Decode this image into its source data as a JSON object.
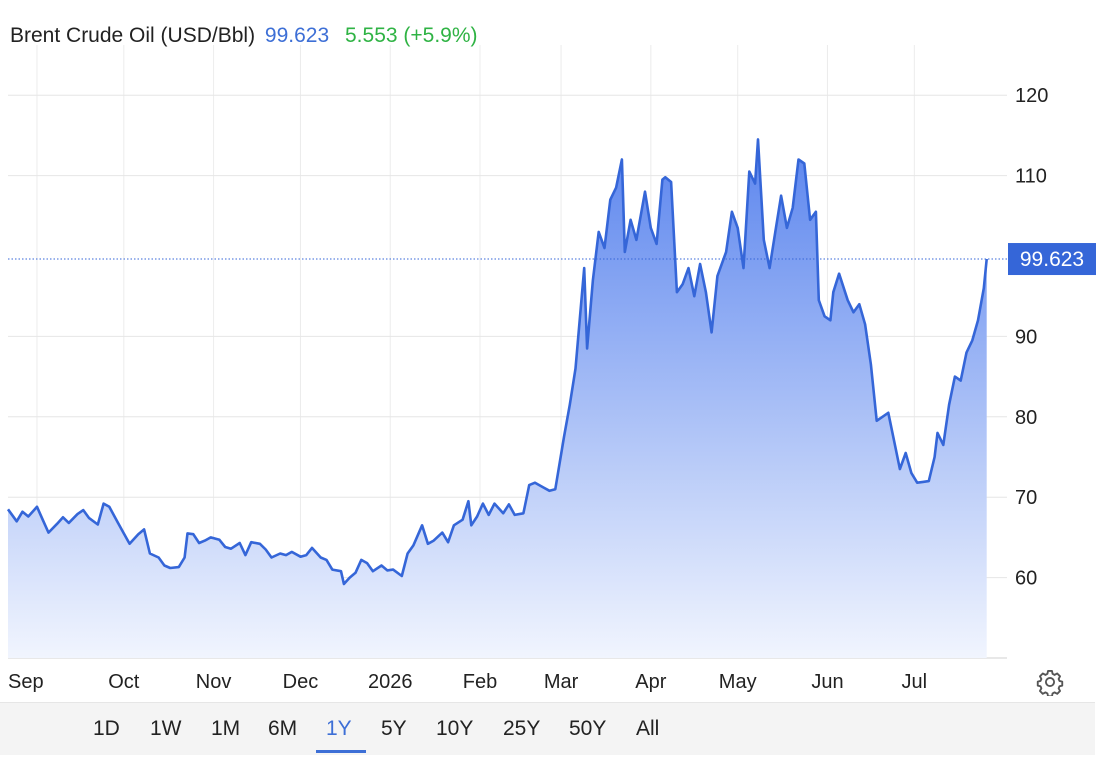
{
  "header": {
    "name": "Brent Crude Oil (USD/Bbl)",
    "price": "99.623",
    "change": "5.553 (+5.9%)"
  },
  "last_price_label": "99.623",
  "ranges": [
    "1D",
    "1W",
    "1M",
    "6M",
    "1Y",
    "5Y",
    "10Y",
    "25Y",
    "50Y",
    "All"
  ],
  "active_range": "1Y",
  "colors": {
    "line": "#3566d8",
    "accent": "#3d6fd6",
    "up": "#2fb344",
    "area_top": "#5b85ee",
    "area_bottom": "#f1f5fe"
  },
  "icons": {
    "settings": "gear-icon"
  },
  "chart_data": {
    "type": "area",
    "title": "Brent Crude Oil (USD/Bbl)",
    "ylim": [
      50,
      125
    ],
    "yticks": [
      60,
      70,
      80,
      90,
      110,
      120
    ],
    "x_range": [
      "2025-08-22",
      "2026-08-02"
    ],
    "x_tick_labels": [
      {
        "date": "2025-09-01",
        "label": "Sep"
      },
      {
        "date": "2025-10-01",
        "label": "Oct"
      },
      {
        "date": "2025-11-01",
        "label": "Nov"
      },
      {
        "date": "2025-12-01",
        "label": "Dec"
      },
      {
        "date": "2026-01-01",
        "label": "2026"
      },
      {
        "date": "2026-02-01",
        "label": "Feb"
      },
      {
        "date": "2026-03-01",
        "label": "Mar"
      },
      {
        "date": "2026-04-01",
        "label": "Apr"
      },
      {
        "date": "2026-05-01",
        "label": "May"
      },
      {
        "date": "2026-06-01",
        "label": "Jun"
      },
      {
        "date": "2026-07-01",
        "label": "Jul"
      }
    ],
    "grid": true,
    "last_value": 99.623,
    "series": [
      {
        "values": [
          [
            "2025-08-22",
            68.5
          ],
          [
            "2025-08-25",
            67.0
          ],
          [
            "2025-08-27",
            68.2
          ],
          [
            "2025-08-29",
            67.6
          ],
          [
            "2025-09-01",
            68.8
          ],
          [
            "2025-09-03",
            67.2
          ],
          [
            "2025-09-05",
            65.6
          ],
          [
            "2025-09-08",
            66.7
          ],
          [
            "2025-09-10",
            67.5
          ],
          [
            "2025-09-12",
            66.8
          ],
          [
            "2025-09-15",
            67.9
          ],
          [
            "2025-09-17",
            68.4
          ],
          [
            "2025-09-19",
            67.4
          ],
          [
            "2025-09-22",
            66.6
          ],
          [
            "2025-09-24",
            69.2
          ],
          [
            "2025-09-26",
            68.8
          ],
          [
            "2025-09-29",
            66.8
          ],
          [
            "2025-10-01",
            65.5
          ],
          [
            "2025-10-03",
            64.2
          ],
          [
            "2025-10-06",
            65.4
          ],
          [
            "2025-10-08",
            66.0
          ],
          [
            "2025-10-10",
            63.0
          ],
          [
            "2025-10-13",
            62.5
          ],
          [
            "2025-10-15",
            61.5
          ],
          [
            "2025-10-17",
            61.2
          ],
          [
            "2025-10-20",
            61.3
          ],
          [
            "2025-10-22",
            62.5
          ],
          [
            "2025-10-23",
            65.5
          ],
          [
            "2025-10-25",
            65.4
          ],
          [
            "2025-10-27",
            64.3
          ],
          [
            "2025-10-29",
            64.6
          ],
          [
            "2025-10-31",
            65.0
          ],
          [
            "2025-11-03",
            64.7
          ],
          [
            "2025-11-05",
            63.8
          ],
          [
            "2025-11-07",
            63.6
          ],
          [
            "2025-11-10",
            64.3
          ],
          [
            "2025-11-12",
            62.8
          ],
          [
            "2025-11-14",
            64.4
          ],
          [
            "2025-11-17",
            64.2
          ],
          [
            "2025-11-19",
            63.5
          ],
          [
            "2025-11-21",
            62.5
          ],
          [
            "2025-11-24",
            63.0
          ],
          [
            "2025-11-26",
            62.8
          ],
          [
            "2025-11-28",
            63.2
          ],
          [
            "2025-12-01",
            62.6
          ],
          [
            "2025-12-03",
            62.8
          ],
          [
            "2025-12-05",
            63.7
          ],
          [
            "2025-12-08",
            62.5
          ],
          [
            "2025-12-10",
            62.2
          ],
          [
            "2025-12-12",
            61.0
          ],
          [
            "2025-12-15",
            60.8
          ],
          [
            "2025-12-16",
            59.2
          ],
          [
            "2025-12-18",
            60.0
          ],
          [
            "2025-12-20",
            60.6
          ],
          [
            "2025-12-22",
            62.2
          ],
          [
            "2025-12-24",
            61.8
          ],
          [
            "2025-12-26",
            60.8
          ],
          [
            "2025-12-29",
            61.5
          ],
          [
            "2025-12-31",
            60.9
          ],
          [
            "2026-01-02",
            61.0
          ],
          [
            "2026-01-05",
            60.2
          ],
          [
            "2026-01-07",
            63.0
          ],
          [
            "2026-01-09",
            64.0
          ],
          [
            "2026-01-12",
            66.5
          ],
          [
            "2026-01-14",
            64.2
          ],
          [
            "2026-01-16",
            64.6
          ],
          [
            "2026-01-19",
            65.6
          ],
          [
            "2026-01-21",
            64.4
          ],
          [
            "2026-01-23",
            66.5
          ],
          [
            "2026-01-26",
            67.2
          ],
          [
            "2026-01-28",
            69.5
          ],
          [
            "2026-01-29",
            66.5
          ],
          [
            "2026-01-31",
            67.6
          ],
          [
            "2026-02-02",
            69.2
          ],
          [
            "2026-02-04",
            67.8
          ],
          [
            "2026-02-06",
            69.2
          ],
          [
            "2026-02-09",
            68.0
          ],
          [
            "2026-02-11",
            69.1
          ],
          [
            "2026-02-13",
            67.8
          ],
          [
            "2026-02-16",
            68.0
          ],
          [
            "2026-02-18",
            71.5
          ],
          [
            "2026-02-20",
            71.8
          ],
          [
            "2026-02-23",
            71.2
          ],
          [
            "2026-02-25",
            70.8
          ],
          [
            "2026-02-27",
            71.0
          ],
          [
            "2026-03-02",
            77.5
          ],
          [
            "2026-03-04",
            81.5
          ],
          [
            "2026-03-06",
            86.0
          ],
          [
            "2026-03-09",
            98.5
          ],
          [
            "2026-03-10",
            88.5
          ],
          [
            "2026-03-12",
            97.0
          ],
          [
            "2026-03-14",
            103.0
          ],
          [
            "2026-03-16",
            101.0
          ],
          [
            "2026-03-18",
            107.0
          ],
          [
            "2026-03-20",
            108.5
          ],
          [
            "2026-03-22",
            112.0
          ],
          [
            "2026-03-23",
            100.5
          ],
          [
            "2026-03-25",
            104.5
          ],
          [
            "2026-03-27",
            102.0
          ],
          [
            "2026-03-30",
            108.0
          ],
          [
            "2026-04-01",
            103.5
          ],
          [
            "2026-04-03",
            101.5
          ],
          [
            "2026-04-05",
            109.5
          ],
          [
            "2026-04-06",
            109.8
          ],
          [
            "2026-04-08",
            109.2
          ],
          [
            "2026-04-10",
            95.5
          ],
          [
            "2026-04-12",
            96.5
          ],
          [
            "2026-04-14",
            98.5
          ],
          [
            "2026-04-16",
            95.0
          ],
          [
            "2026-04-18",
            99.0
          ],
          [
            "2026-04-20",
            95.5
          ],
          [
            "2026-04-22",
            90.5
          ],
          [
            "2026-04-24",
            97.5
          ],
          [
            "2026-04-27",
            100.5
          ],
          [
            "2026-04-29",
            105.5
          ],
          [
            "2026-05-01",
            103.5
          ],
          [
            "2026-05-03",
            98.5
          ],
          [
            "2026-05-05",
            110.5
          ],
          [
            "2026-05-07",
            109.0
          ],
          [
            "2026-05-08",
            114.5
          ],
          [
            "2026-05-10",
            102.0
          ],
          [
            "2026-05-12",
            98.5
          ],
          [
            "2026-05-14",
            103.0
          ],
          [
            "2026-05-16",
            107.5
          ],
          [
            "2026-05-18",
            103.5
          ],
          [
            "2026-05-20",
            106.0
          ],
          [
            "2026-05-22",
            112.0
          ],
          [
            "2026-05-24",
            111.5
          ],
          [
            "2026-05-26",
            104.5
          ],
          [
            "2026-05-28",
            105.5
          ],
          [
            "2026-05-29",
            94.5
          ],
          [
            "2026-05-31",
            92.5
          ],
          [
            "2026-06-02",
            92.0
          ],
          [
            "2026-06-03",
            95.5
          ],
          [
            "2026-06-05",
            97.8
          ],
          [
            "2026-06-08",
            94.5
          ],
          [
            "2026-06-10",
            93.0
          ],
          [
            "2026-06-12",
            94.0
          ],
          [
            "2026-06-14",
            91.5
          ],
          [
            "2026-06-16",
            86.5
          ],
          [
            "2026-06-18",
            79.5
          ],
          [
            "2026-06-20",
            80.0
          ],
          [
            "2026-06-22",
            80.5
          ],
          [
            "2026-06-24",
            77.0
          ],
          [
            "2026-06-26",
            73.5
          ],
          [
            "2026-06-28",
            75.5
          ],
          [
            "2026-06-30",
            73.0
          ],
          [
            "2026-07-02",
            71.8
          ],
          [
            "2026-07-04",
            71.9
          ],
          [
            "2026-07-06",
            72.0
          ],
          [
            "2026-07-08",
            75.0
          ],
          [
            "2026-07-09",
            78.0
          ],
          [
            "2026-07-11",
            76.5
          ],
          [
            "2026-07-13",
            81.5
          ],
          [
            "2026-07-15",
            85.0
          ],
          [
            "2026-07-17",
            84.5
          ],
          [
            "2026-07-19",
            88.0
          ],
          [
            "2026-07-21",
            89.5
          ],
          [
            "2026-07-23",
            92.0
          ],
          [
            "2026-07-25",
            96.0
          ],
          [
            "2026-07-26",
            99.623
          ]
        ]
      }
    ]
  }
}
